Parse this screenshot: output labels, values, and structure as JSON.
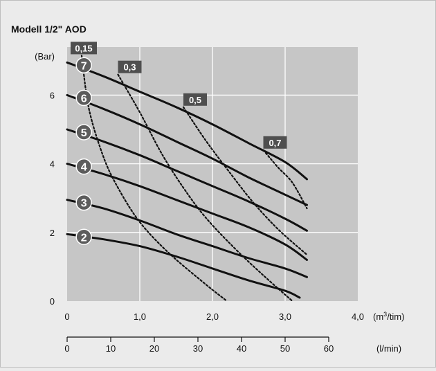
{
  "chart_data": {
    "type": "line",
    "title": "Modell 1/2\" AOD",
    "y_unit_label": "(Bar)",
    "x_primary": {
      "unit_prefix": "(m",
      "unit_sup": "3",
      "unit_suffix": "/tim)",
      "range": [
        0,
        4.0
      ],
      "ticks": [
        0,
        1.0,
        2.0,
        3.0,
        4.0
      ],
      "tick_labels": [
        "0",
        "1,0",
        "2,0",
        "3,0",
        "4,0"
      ]
    },
    "x_secondary": {
      "unit": "(l/min)",
      "range": [
        0,
        66.67
      ],
      "ticks": [
        0,
        10,
        20,
        30,
        40,
        50,
        60
      ],
      "tick_labels": [
        "0",
        "10",
        "20",
        "30",
        "40",
        "50",
        "60"
      ]
    },
    "y_axis": {
      "range": [
        0,
        7.4
      ],
      "ticks": [
        0,
        2,
        4,
        6
      ],
      "tick_labels": [
        "0",
        "2",
        "4",
        "6"
      ]
    },
    "grid": true,
    "plot_background": "#c6c6c6",
    "line_color": "#111111",
    "pressure_curves": [
      {
        "label": "7",
        "points": [
          [
            0.0,
            6.95
          ],
          [
            0.5,
            6.55
          ],
          [
            1.0,
            6.1
          ],
          [
            1.5,
            5.65
          ],
          [
            2.0,
            5.15
          ],
          [
            2.5,
            4.6
          ],
          [
            3.0,
            4.05
          ],
          [
            3.3,
            3.55
          ]
        ]
      },
      {
        "label": "6",
        "points": [
          [
            0.0,
            6.0
          ],
          [
            0.5,
            5.6
          ],
          [
            1.0,
            5.15
          ],
          [
            1.5,
            4.65
          ],
          [
            2.0,
            4.15
          ],
          [
            2.5,
            3.6
          ],
          [
            3.0,
            3.1
          ],
          [
            3.3,
            2.8
          ]
        ]
      },
      {
        "label": "5",
        "points": [
          [
            0.0,
            5.0
          ],
          [
            0.5,
            4.65
          ],
          [
            1.0,
            4.25
          ],
          [
            1.5,
            3.8
          ],
          [
            2.0,
            3.35
          ],
          [
            2.5,
            2.9
          ],
          [
            3.0,
            2.4
          ],
          [
            3.3,
            2.05
          ]
        ]
      },
      {
        "label": "4",
        "points": [
          [
            0.0,
            4.0
          ],
          [
            0.5,
            3.7
          ],
          [
            1.0,
            3.35
          ],
          [
            1.5,
            2.95
          ],
          [
            2.0,
            2.55
          ],
          [
            2.5,
            2.15
          ],
          [
            3.0,
            1.65
          ],
          [
            3.3,
            1.2
          ]
        ]
      },
      {
        "label": "3",
        "points": [
          [
            0.0,
            2.95
          ],
          [
            0.5,
            2.7
          ],
          [
            1.0,
            2.35
          ],
          [
            1.5,
            1.95
          ],
          [
            2.0,
            1.6
          ],
          [
            2.5,
            1.25
          ],
          [
            3.0,
            0.95
          ],
          [
            3.3,
            0.7
          ]
        ]
      },
      {
        "label": "2",
        "points": [
          [
            0.0,
            1.95
          ],
          [
            0.5,
            1.8
          ],
          [
            1.0,
            1.6
          ],
          [
            1.5,
            1.3
          ],
          [
            2.0,
            0.95
          ],
          [
            2.5,
            0.6
          ],
          [
            3.0,
            0.3
          ],
          [
            3.2,
            0.1
          ]
        ]
      }
    ],
    "air_consumption_curves": [
      {
        "label": "0,15",
        "points": [
          [
            0.2,
            7.15
          ],
          [
            0.3,
            5.6
          ],
          [
            0.5,
            4.2
          ],
          [
            0.7,
            3.3
          ],
          [
            1.0,
            2.3
          ],
          [
            1.4,
            1.4
          ],
          [
            1.9,
            0.5
          ],
          [
            2.2,
            0.0
          ]
        ]
      },
      {
        "label": "0,3",
        "points": [
          [
            0.7,
            6.6
          ],
          [
            1.0,
            5.5
          ],
          [
            1.3,
            4.3
          ],
          [
            1.6,
            3.3
          ],
          [
            1.9,
            2.45
          ],
          [
            2.3,
            1.55
          ],
          [
            2.7,
            0.75
          ],
          [
            3.1,
            0.0
          ]
        ]
      },
      {
        "label": "0,5",
        "points": [
          [
            1.6,
            5.65
          ],
          [
            1.9,
            4.7
          ],
          [
            2.2,
            3.85
          ],
          [
            2.55,
            2.9
          ],
          [
            2.9,
            2.1
          ],
          [
            3.3,
            1.35
          ]
        ]
      },
      {
        "label": "0,7",
        "points": [
          [
            2.7,
            4.4
          ],
          [
            2.9,
            3.9
          ],
          [
            3.1,
            3.45
          ],
          [
            3.3,
            2.7
          ]
        ]
      }
    ]
  }
}
